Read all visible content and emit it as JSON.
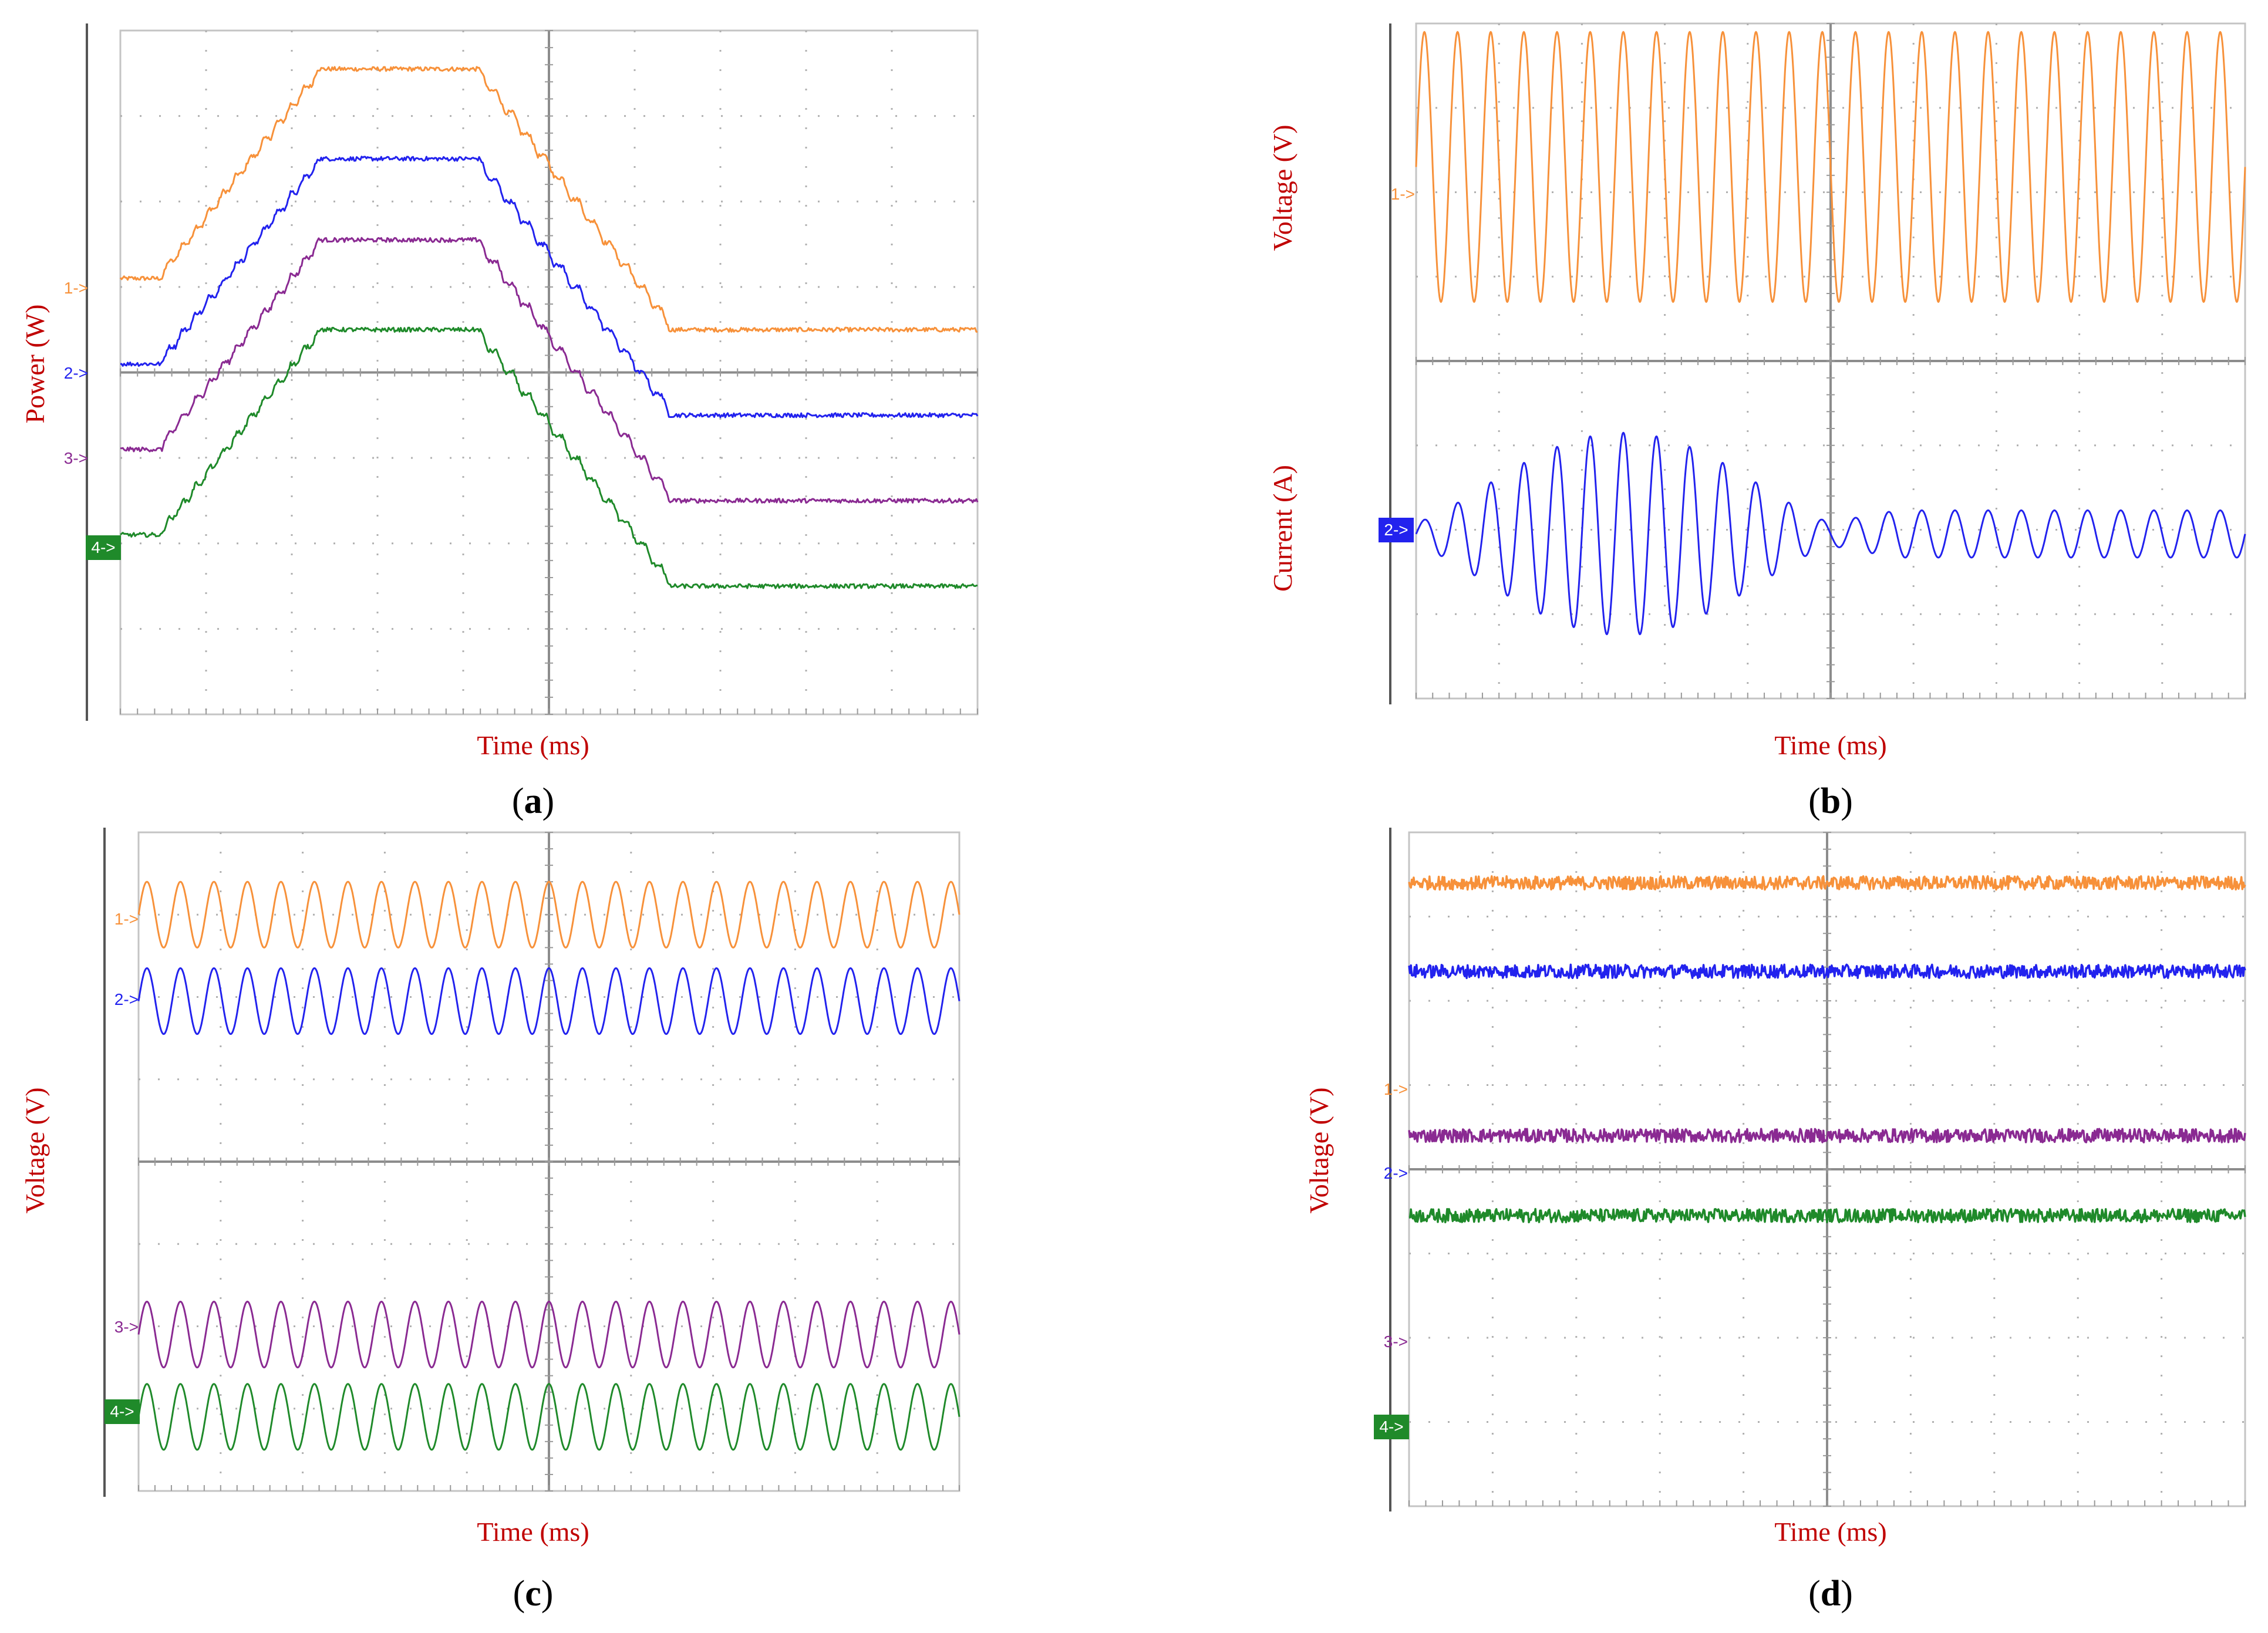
{
  "figure": {
    "colors": {
      "ch1": "#f7913a",
      "ch2": "#2222ee",
      "ch3": "#8a2a92",
      "ch4": "#1f8a2a",
      "axis_text": "#c00000"
    }
  },
  "chart_data": [
    {
      "panel": "a",
      "caption_letter": "a",
      "type": "line",
      "xlabel": "Time (ms)",
      "ylabel": "Power (W)",
      "grid": true,
      "xlim": [
        0,
        10
      ],
      "ylim": [
        0,
        8
      ],
      "channel_labels": [
        "1->",
        "2->",
        "3->",
        "4->"
      ],
      "series": [
        {
          "name": "1->",
          "color": "ch1",
          "kind": "trapezoid",
          "base": 5.1,
          "top": 7.55,
          "end": 4.5,
          "noise": 0.025
        },
        {
          "name": "2->",
          "color": "ch2",
          "kind": "trapezoid",
          "base": 4.1,
          "top": 6.5,
          "end": 3.5,
          "noise": 0.025
        },
        {
          "name": "3->",
          "color": "ch3",
          "kind": "trapezoid",
          "base": 3.1,
          "top": 5.55,
          "end": 2.5,
          "noise": 0.025
        },
        {
          "name": "4->",
          "color": "ch4",
          "kind": "trapezoid",
          "base": 2.1,
          "top": 4.5,
          "end": 1.5,
          "noise": 0.025
        }
      ],
      "breakpoints_ms": [
        0.4,
        2.3,
        4.1,
        6.4
      ]
    },
    {
      "panel": "b",
      "caption_letter": "b",
      "type": "line",
      "xlabel": "Time (ms)",
      "ylabel_top": "Voltage (V)",
      "ylabel_bottom": "Current (A)",
      "grid": true,
      "xlim": [
        0,
        10
      ],
      "ylim": [
        0,
        8
      ],
      "channel_labels": [
        "1->",
        "2->"
      ],
      "series": [
        {
          "name": "1->",
          "color": "ch1",
          "kind": "sine",
          "center": 6.3,
          "amplitude": 1.6,
          "cycles": 25
        },
        {
          "name": "2->",
          "color": "ch2",
          "kind": "current",
          "center": 1.95,
          "amplitude_peak": 1.2,
          "amplitude_steady": 0.28,
          "cycles": 25,
          "pulse_end_ms": 5.0
        }
      ]
    },
    {
      "panel": "c",
      "caption_letter": "c",
      "type": "line",
      "xlabel": "Time (ms)",
      "ylabel": "Voltage (V)",
      "grid": true,
      "xlim": [
        0,
        10
      ],
      "ylim": [
        0,
        8
      ],
      "channel_labels": [
        "1->",
        "2->",
        "3->",
        "4->"
      ],
      "series": [
        {
          "name": "1->",
          "color": "ch1",
          "kind": "sine",
          "center": 7.0,
          "amplitude": 0.4,
          "cycles": 24.5
        },
        {
          "name": "2->",
          "color": "ch2",
          "kind": "sine",
          "center": 5.95,
          "amplitude": 0.4,
          "cycles": 24.5
        },
        {
          "name": "3->",
          "color": "ch3",
          "kind": "sine",
          "center": 1.9,
          "amplitude": 0.4,
          "cycles": 24.5
        },
        {
          "name": "4->",
          "color": "ch4",
          "kind": "sine",
          "center": 0.9,
          "amplitude": 0.4,
          "cycles": 24.5
        }
      ]
    },
    {
      "panel": "d",
      "caption_letter": "d",
      "type": "line",
      "xlabel": "Time (ms)",
      "ylabel": "Voltage (V)",
      "grid": true,
      "xlim": [
        0,
        10
      ],
      "ylim": [
        0,
        8
      ],
      "channel_labels": [
        "1->",
        "2->",
        "3->",
        "4->"
      ],
      "series": [
        {
          "name": "1->",
          "color": "ch1",
          "kind": "flat",
          "level": 7.4,
          "noise": 0.08
        },
        {
          "name": "2->",
          "color": "ch2",
          "kind": "flat",
          "level": 6.35,
          "noise": 0.08
        },
        {
          "name": "3->",
          "color": "ch3",
          "kind": "flat",
          "level": 4.4,
          "noise": 0.08
        },
        {
          "name": "4->",
          "color": "ch4",
          "kind": "flat",
          "level": 3.45,
          "noise": 0.08
        }
      ],
      "label_levels": [
        4.9,
        3.9,
        1.9,
        0.9
      ]
    }
  ]
}
